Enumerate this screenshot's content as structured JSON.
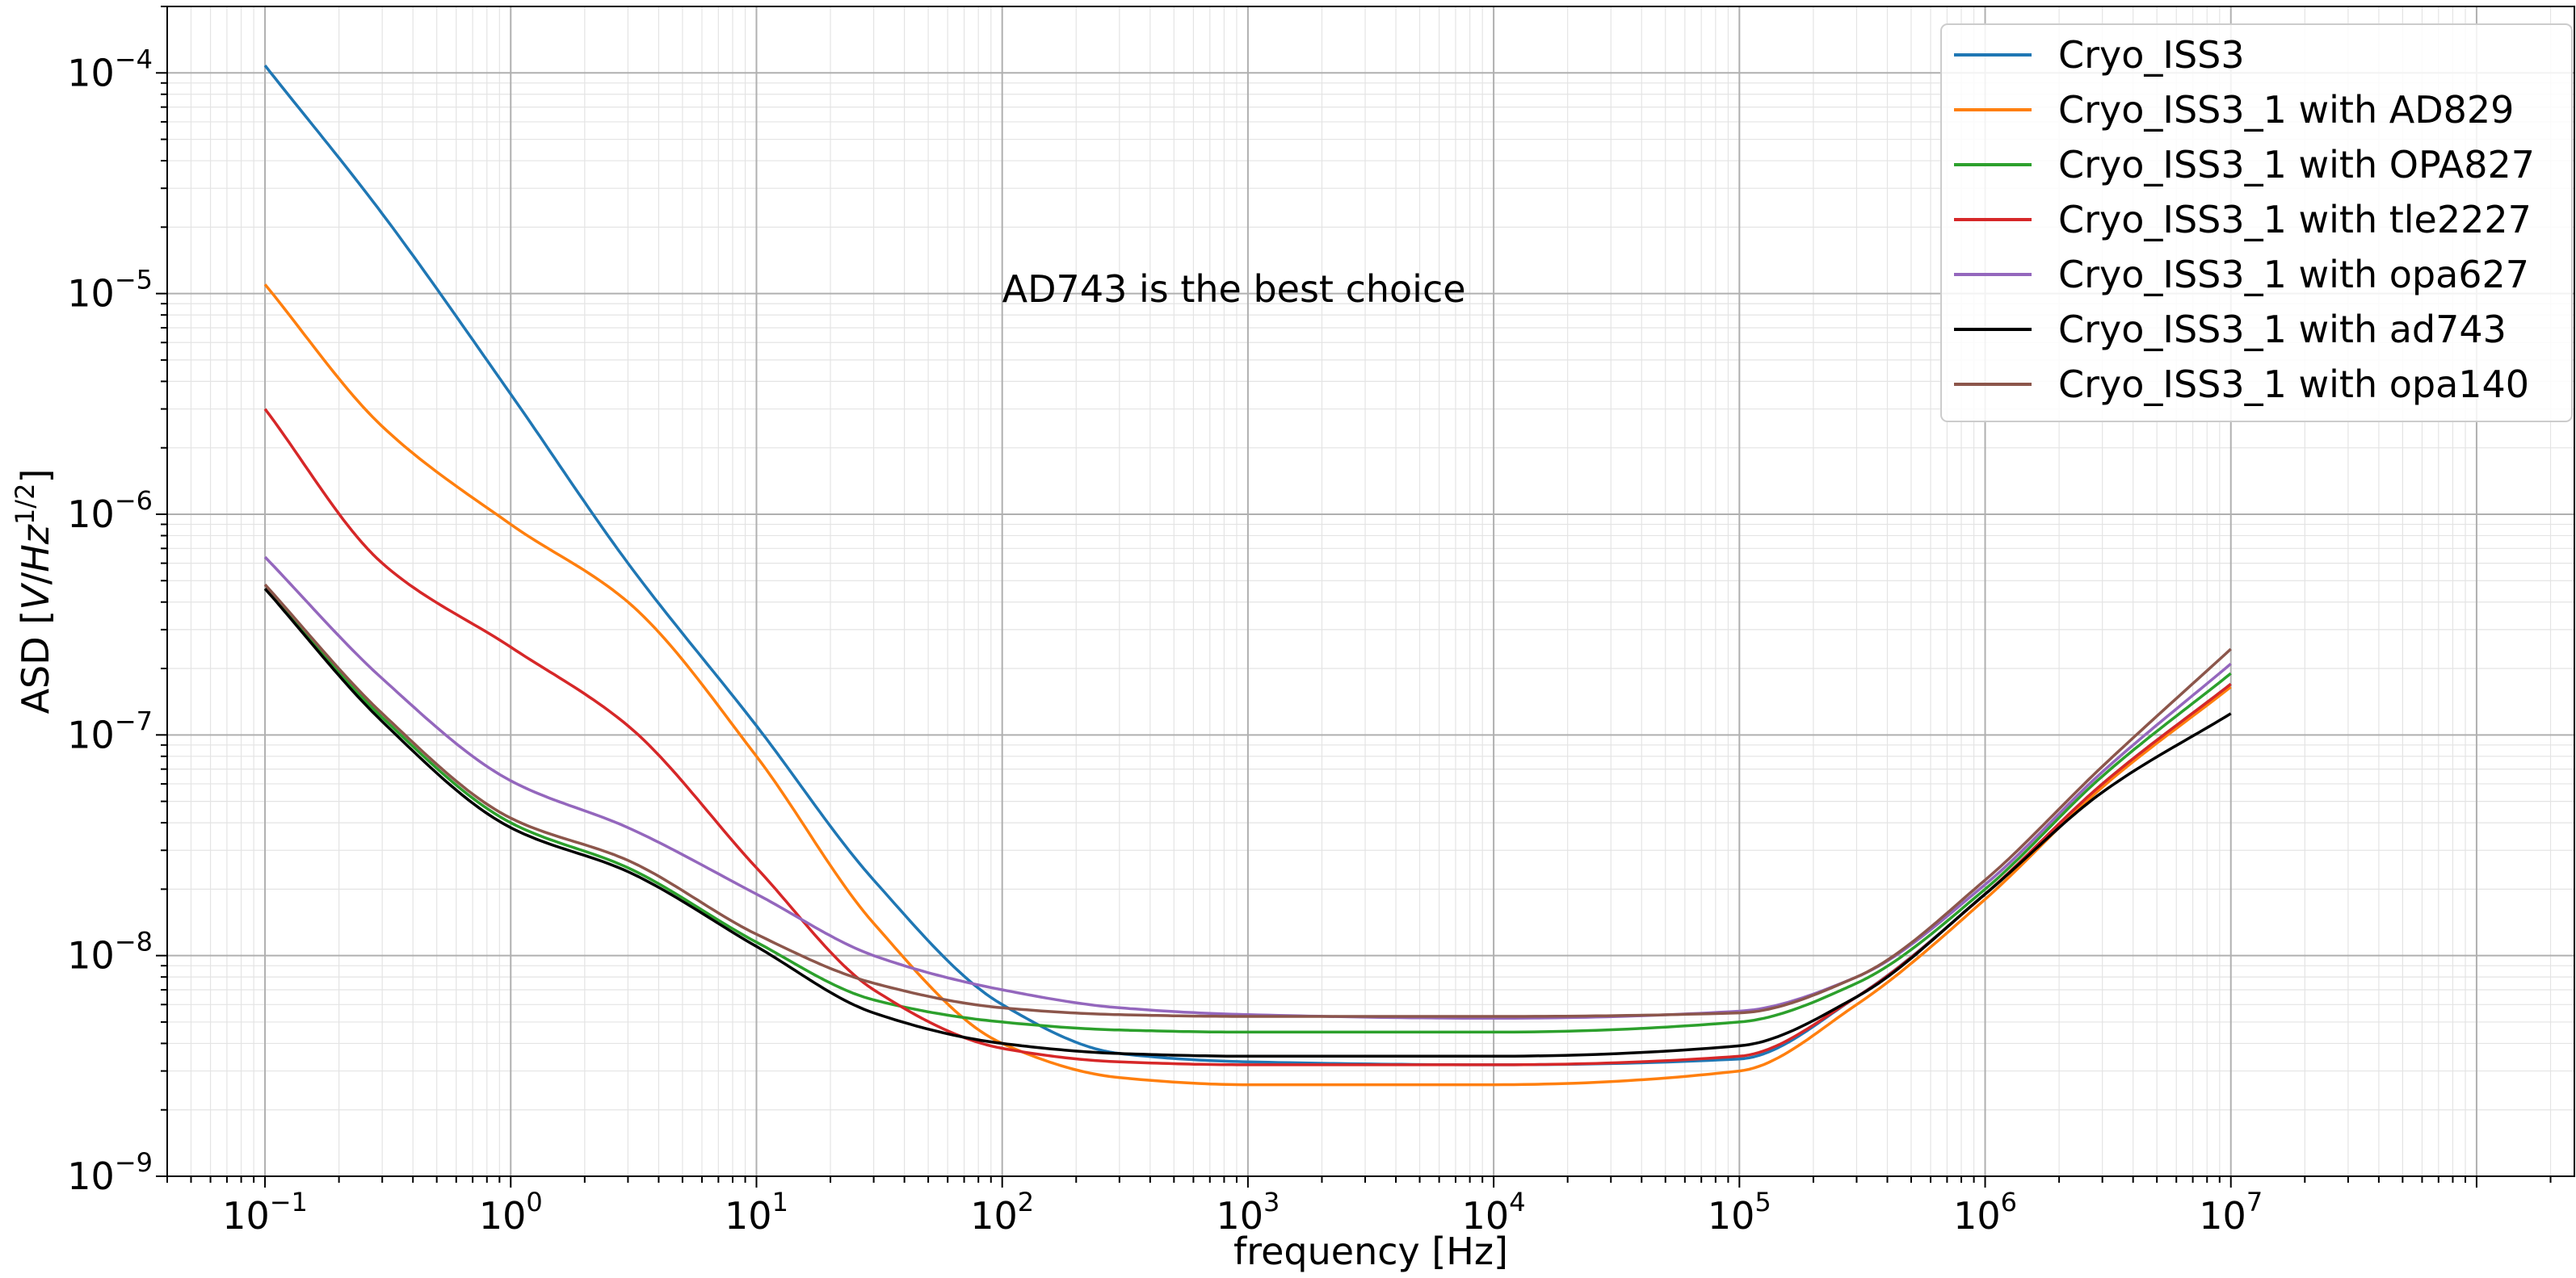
{
  "chart_data": {
    "type": "line",
    "title": "",
    "xlabel": "frequency [Hz]",
    "ylabel_parts": {
      "before": "ASD [",
      "v": "V",
      "slash": "/",
      "hz": "Hz",
      "exp": "1/2",
      "after": "]"
    },
    "xscale": "log",
    "yscale": "log",
    "xlim": [
      0.04,
      250000000
    ],
    "ylim": [
      1e-09,
      0.0002
    ],
    "grid": "major and minor",
    "legend_position": "top-right",
    "x_ticks": [
      {
        "mant": "10",
        "exp": "−1"
      },
      {
        "mant": "10",
        "exp": "0"
      },
      {
        "mant": "10",
        "exp": "1"
      },
      {
        "mant": "10",
        "exp": "2"
      },
      {
        "mant": "10",
        "exp": "3"
      },
      {
        "mant": "10",
        "exp": "4"
      },
      {
        "mant": "10",
        "exp": "5"
      },
      {
        "mant": "10",
        "exp": "6"
      },
      {
        "mant": "10",
        "exp": "7"
      }
    ],
    "y_ticks": [
      {
        "mant": "10",
        "exp": "−9"
      },
      {
        "mant": "10",
        "exp": "−8"
      },
      {
        "mant": "10",
        "exp": "−7"
      },
      {
        "mant": "10",
        "exp": "−6"
      },
      {
        "mant": "10",
        "exp": "−5"
      },
      {
        "mant": "10",
        "exp": "−4"
      }
    ],
    "annotation": {
      "text": "AD743 is the best choice",
      "x": 100,
      "y": 1.05e-05
    },
    "x": [
      0.1,
      0.3,
      1,
      3,
      10,
      30,
      100,
      300,
      1000,
      10000,
      100000,
      300000,
      1000000,
      3000000,
      10000000
    ],
    "series": [
      {
        "name": "Cryo_ISS3",
        "color": "#1f77b4",
        "values": [
          0.000108,
          2.3e-05,
          3.5e-06,
          6e-07,
          1.1e-07,
          2.2e-08,
          6e-09,
          3.6e-09,
          3.3e-09,
          3.2e-09,
          3.4e-09,
          6.5e-09,
          1.9e-08,
          6e-08,
          1.7e-07
        ]
      },
      {
        "name": "Cryo_ISS3_1 with AD829",
        "color": "#ff7f0e",
        "values": [
          1.1e-05,
          2.5e-06,
          9e-07,
          4e-07,
          8e-08,
          1.4e-08,
          4e-09,
          2.8e-09,
          2.6e-09,
          2.6e-09,
          3e-09,
          6e-09,
          1.8e-08,
          5.8e-08,
          1.65e-07
        ]
      },
      {
        "name": "Cryo_ISS3_1 with OPA827",
        "color": "#2ca02c",
        "values": [
          4.6e-07,
          1.2e-07,
          4e-08,
          2.5e-08,
          1.15e-08,
          6.3e-09,
          5e-09,
          4.6e-09,
          4.5e-09,
          4.5e-09,
          5e-09,
          7.5e-09,
          2e-08,
          6.5e-08,
          1.9e-07
        ]
      },
      {
        "name": "Cryo_ISS3_1 with tle2227",
        "color": "#d62728",
        "values": [
          3e-06,
          6e-07,
          2.5e-07,
          1.1e-07,
          2.5e-08,
          7e-09,
          3.8e-09,
          3.3e-09,
          3.2e-09,
          3.2e-09,
          3.5e-09,
          6.5e-09,
          1.9e-08,
          6e-08,
          1.7e-07
        ]
      },
      {
        "name": "Cryo_ISS3_1 with opa627",
        "color": "#9467bd",
        "values": [
          6.4e-07,
          1.8e-07,
          6.2e-08,
          3.8e-08,
          1.9e-08,
          1e-08,
          7e-09,
          5.8e-09,
          5.4e-09,
          5.2e-09,
          5.6e-09,
          8e-09,
          2.1e-08,
          6.8e-08,
          2.1e-07
        ]
      },
      {
        "name": "Cryo_ISS3_1 with ad743",
        "color": "#000000",
        "values": [
          4.6e-07,
          1.15e-07,
          3.8e-08,
          2.4e-08,
          1.1e-08,
          5.5e-09,
          4e-09,
          3.6e-09,
          3.5e-09,
          3.5e-09,
          3.9e-09,
          6.5e-09,
          1.9e-08,
          5.5e-08,
          1.25e-07
        ]
      },
      {
        "name": "Cryo_ISS3_1 with opa140",
        "color": "#8c564b",
        "values": [
          4.8e-07,
          1.25e-07,
          4.2e-08,
          2.7e-08,
          1.25e-08,
          7.5e-09,
          5.8e-09,
          5.4e-09,
          5.3e-09,
          5.3e-09,
          5.5e-09,
          8e-09,
          2.2e-08,
          7.2e-08,
          2.45e-07
        ]
      }
    ]
  }
}
